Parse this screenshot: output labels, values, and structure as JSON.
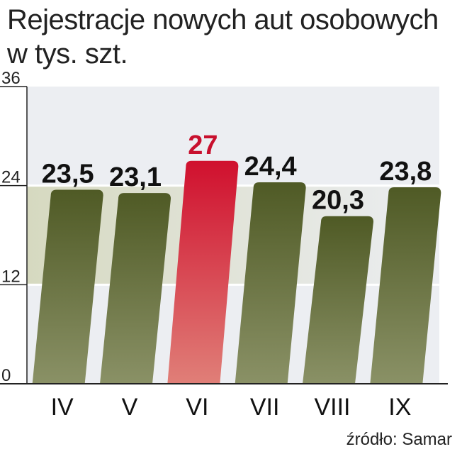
{
  "header": {
    "title_line1": "Rejestracje nowych aut osobowych",
    "title_line2": "w tys. szt."
  },
  "footer": {
    "source": "źródło: Samar"
  },
  "colors": {
    "bar_gradient_top": "#4f5a25",
    "bar_gradient_bottom": "#8a9166",
    "highlight_top": "#d0102e",
    "highlight_bottom": "#e07f78",
    "highlight_label": "#c8102e",
    "plot_bg": "#eceef2",
    "band_bg": "#d6d9c0"
  },
  "chart_data": {
    "type": "bar",
    "categories": [
      "IV",
      "V",
      "VI",
      "VII",
      "VIII",
      "IX"
    ],
    "values": [
      23.5,
      23.1,
      27,
      24.4,
      20.3,
      23.8
    ],
    "value_labels": [
      "23,5",
      "23,1",
      "27",
      "24,4",
      "20,3",
      "23,8"
    ],
    "highlight_index": 2,
    "yticks": [
      0,
      12,
      24,
      36
    ],
    "ylim": [
      0,
      36
    ],
    "grid": true
  }
}
